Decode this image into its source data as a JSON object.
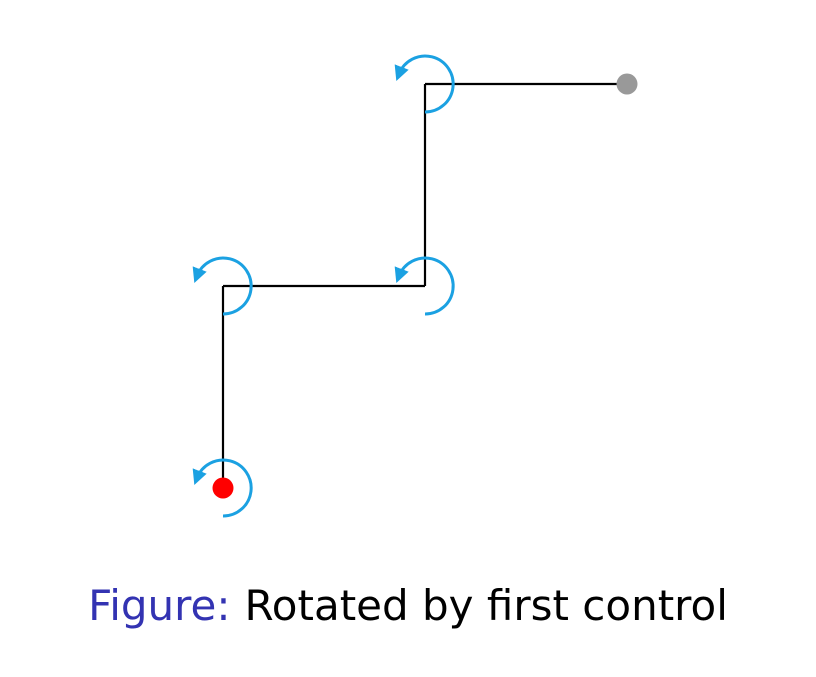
{
  "caption": {
    "prefix": "Figure:",
    "text": "Rotated by first control"
  },
  "colors": {
    "caption_prefix": "#3333b2",
    "caption_text": "#000000",
    "link_line": "#000000",
    "rotation_arrow": "#1ba1e2",
    "base_point": "#ff0000",
    "end_effector": "#999999"
  },
  "diagram": {
    "description_elements": {
      "joint_count": 4,
      "rotation_marker_icon": "counterclockwise-rotation-arrow-icon",
      "base_marker_icon": "red-dot-icon",
      "end_effector_icon": "gray-dot-icon"
    }
  }
}
